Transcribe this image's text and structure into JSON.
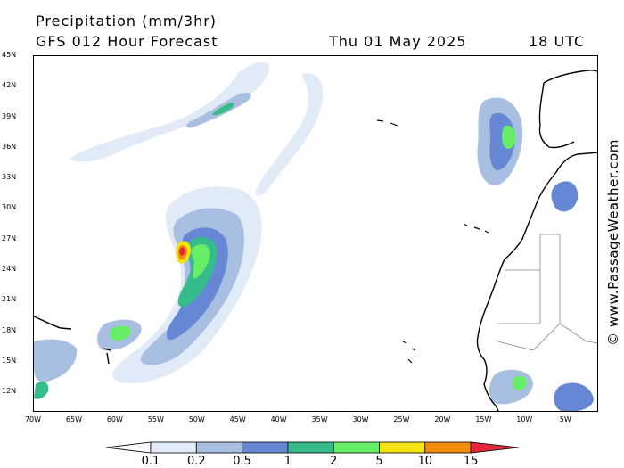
{
  "header": {
    "title": "Precipitation (mm/3hr)",
    "subtitle": "GFS 012 Hour Forecast",
    "date": "Thu 01 May 2025",
    "time": "18 UTC"
  },
  "watermark": "© www.PassageWeather.com",
  "map": {
    "lat_range": [
      10,
      45
    ],
    "lon_range": [
      -70,
      -1
    ],
    "lat_labels": [
      "45N",
      "42N",
      "39N",
      "36N",
      "33N",
      "30N",
      "27N",
      "24N",
      "21N",
      "18N",
      "15N",
      "12N"
    ],
    "lat_values": [
      45,
      42,
      39,
      36,
      33,
      30,
      27,
      24,
      21,
      18,
      15,
      12
    ],
    "lon_labels": [
      "70W",
      "65W",
      "60W",
      "55W",
      "50W",
      "45W",
      "40W",
      "35W",
      "30W",
      "25W",
      "20W",
      "15W",
      "10W",
      "5W"
    ],
    "lon_values": [
      -70,
      -65,
      -60,
      -55,
      -50,
      -45,
      -40,
      -35,
      -30,
      -25,
      -20,
      -15,
      -10,
      -5
    ]
  },
  "legend": {
    "labels": [
      "0.1",
      "0.2",
      "0.5",
      "1",
      "2",
      "5",
      "10",
      "15"
    ],
    "colors": [
      "#ffffff",
      "#e1ebf7",
      "#a9bfe1",
      "#6688d4",
      "#35bc8a",
      "#66ee66",
      "#f5e311",
      "#f28a0c",
      "#e5273e"
    ]
  }
}
